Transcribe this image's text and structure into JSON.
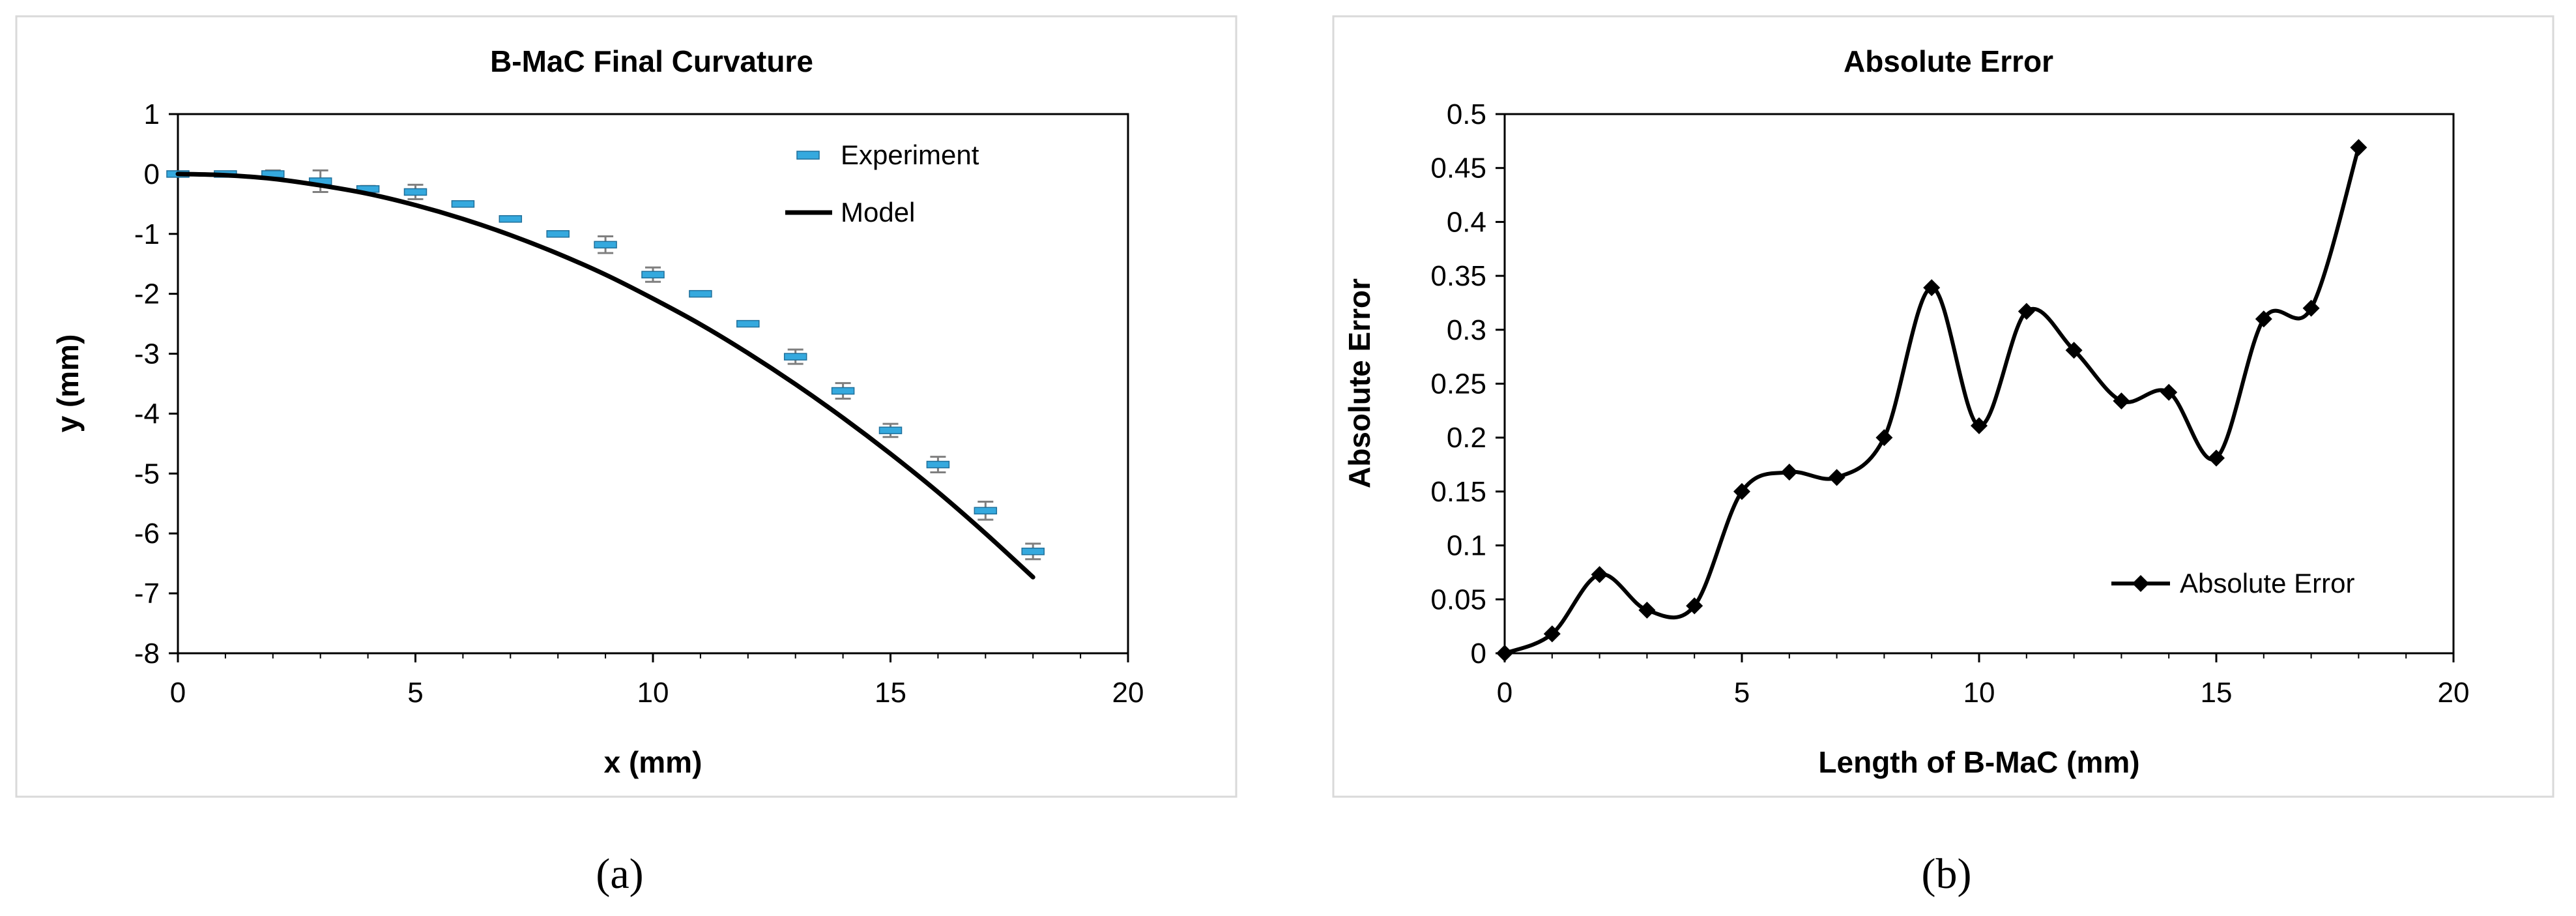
{
  "chart_data": [
    {
      "type": "scatter",
      "panel_label": "(a)",
      "title": "B-MaC Final Curvature",
      "xlabel": "x (mm)",
      "ylabel": "y (mm)",
      "xlim": [
        0,
        20
      ],
      "ylim": [
        -8,
        1
      ],
      "xticks": [
        0,
        5,
        10,
        15,
        20
      ],
      "yticks": [
        1,
        0,
        -1,
        -2,
        -3,
        -4,
        -5,
        -6,
        -7,
        -8
      ],
      "legend_position": "top-right",
      "series": [
        {
          "name": "Experiment",
          "style": "markers-with-error-bars",
          "color": "#35a9de",
          "x": [
            0,
            1,
            2,
            3,
            4,
            5,
            6,
            7,
            8,
            9,
            10,
            11,
            12,
            13,
            14,
            15,
            16,
            17,
            18
          ],
          "y": [
            0,
            0,
            0,
            -0.12,
            -0.25,
            -0.3,
            -0.5,
            -0.75,
            -1.0,
            -1.18,
            -1.68,
            -2.0,
            -2.5,
            -3.05,
            -3.62,
            -4.28,
            -4.85,
            -5.62,
            -6.3
          ],
          "error": [
            0.03,
            0.03,
            0.06,
            0.18,
            0.05,
            0.12,
            0.04,
            0.04,
            0.04,
            0.14,
            0.12,
            0.04,
            0.04,
            0.12,
            0.13,
            0.11,
            0.13,
            0.15,
            0.13
          ]
        },
        {
          "name": "Model",
          "style": "line",
          "color": "#000000",
          "x": [
            0,
            1,
            2,
            3,
            4,
            5,
            6,
            7,
            8,
            9,
            10,
            11,
            12,
            13,
            14,
            15,
            16,
            17,
            18
          ],
          "y": [
            0,
            -0.02,
            -0.08,
            -0.19,
            -0.33,
            -0.52,
            -0.75,
            -1.02,
            -1.33,
            -1.68,
            -2.08,
            -2.51,
            -2.99,
            -3.51,
            -4.07,
            -4.67,
            -5.31,
            -6.0,
            -6.73
          ]
        }
      ]
    },
    {
      "type": "line",
      "panel_label": "(b)",
      "title": "Absolute Error",
      "xlabel": "Length of B-MaC (mm)",
      "ylabel": "Absolute Error",
      "xlim": [
        0,
        20
      ],
      "ylim": [
        0,
        0.5
      ],
      "xticks": [
        0,
        5,
        10,
        15,
        20
      ],
      "yticks": [
        0.5,
        0.45,
        0.4,
        0.35,
        0.3,
        0.25,
        0.2,
        0.15,
        0.1,
        0.05,
        0
      ],
      "legend_position": "bottom-right",
      "series": [
        {
          "name": "Absolute Error",
          "style": "smooth-line-diamond-markers",
          "color": "#000000",
          "x": [
            0,
            1,
            2,
            3,
            4,
            5,
            6,
            7,
            8,
            9,
            10,
            11,
            12,
            13,
            14,
            15,
            16,
            17,
            18
          ],
          "y": [
            0,
            0.018,
            0.073,
            0.04,
            0.044,
            0.15,
            0.168,
            0.163,
            0.2,
            0.339,
            0.211,
            0.317,
            0.281,
            0.234,
            0.242,
            0.181,
            0.31,
            0.32,
            0.469
          ]
        }
      ]
    }
  ]
}
